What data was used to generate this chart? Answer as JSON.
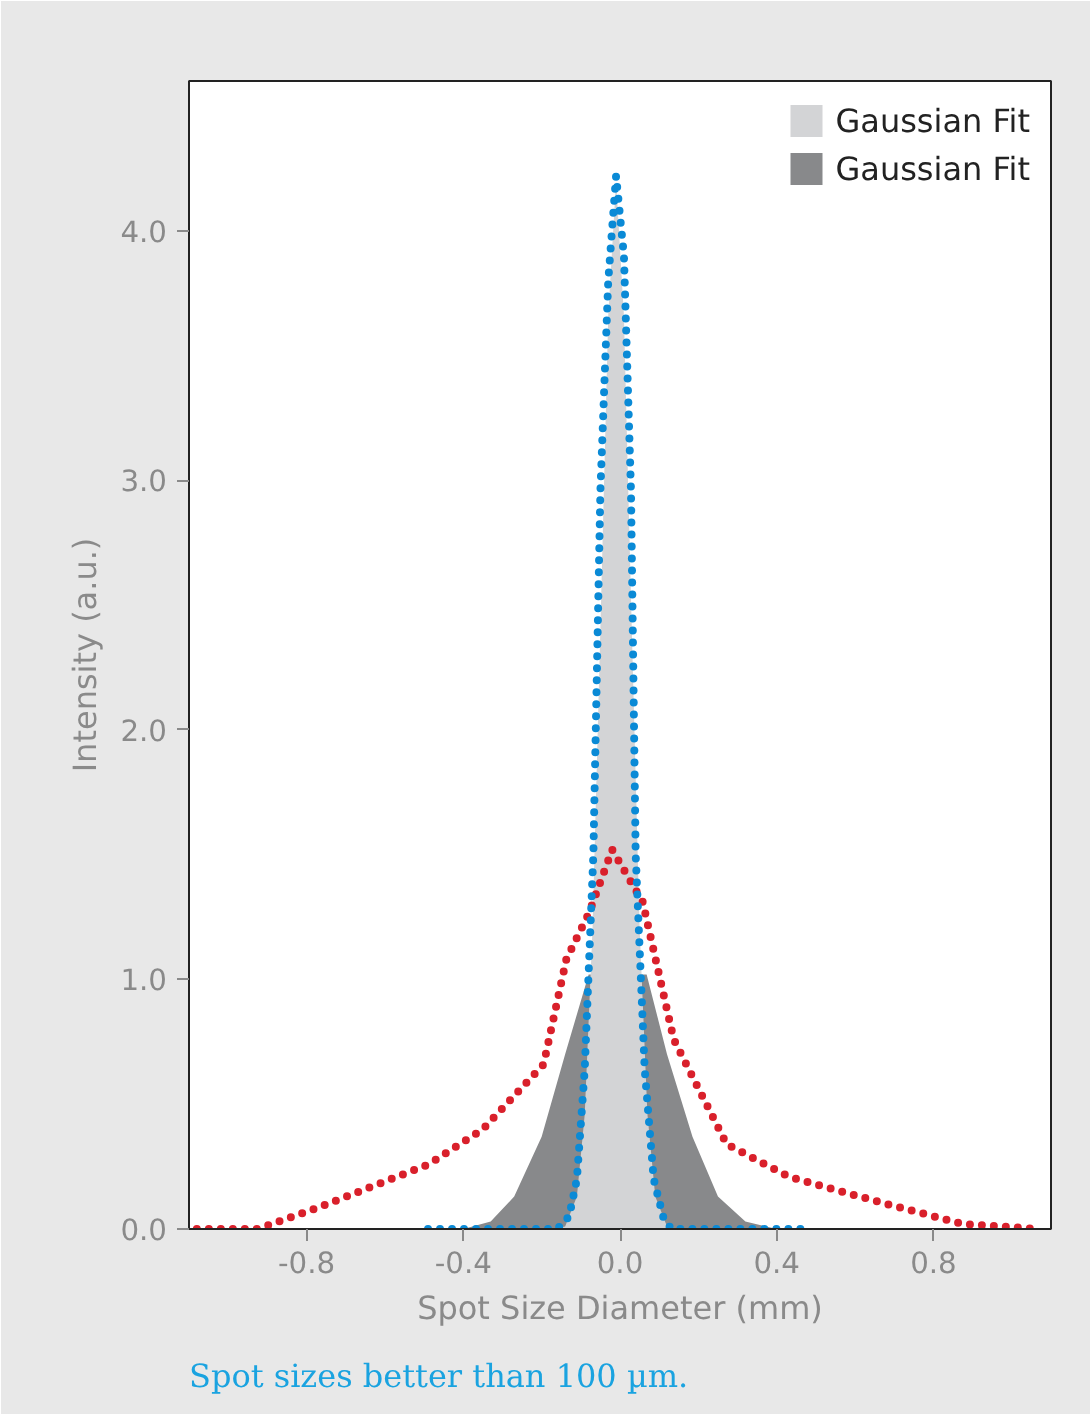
{
  "chart_data": {
    "type": "line",
    "xlabel": "Spot Size Diameter (mm)",
    "ylabel": "Intensity (a.u.)",
    "xlim": [
      -1.1,
      1.1
    ],
    "ylim": [
      0,
      4.6
    ],
    "xticks": [
      {
        "value": -0.8,
        "label": "-0.8"
      },
      {
        "value": -0.4,
        "label": "-0.4"
      },
      {
        "value": 0,
        "label": "0.0"
      },
      {
        "value": 0.4,
        "label": "0.4"
      },
      {
        "value": 0.8,
        "label": "0.8"
      }
    ],
    "yticks": [
      {
        "value": 0,
        "label": "0.0"
      },
      {
        "value": 1,
        "label": "1.0"
      },
      {
        "value": 2,
        "label": "2.0"
      },
      {
        "value": 3,
        "label": "3.0"
      },
      {
        "value": 4,
        "label": "4.0"
      }
    ],
    "grid": false,
    "legend": "top right",
    "line_style": "dotted",
    "series": [
      {
        "color": "#0a8ad6",
        "x": [
          -0.49,
          -0.3,
          -0.16,
          -0.13,
          -0.11,
          -0.09,
          -0.068,
          -0.05,
          -0.03,
          -0.01,
          0.01,
          0.028,
          0.04,
          0.063,
          0.086,
          0.11,
          0.13,
          0.3,
          0.47
        ],
        "values": [
          0,
          0,
          0,
          0.05,
          0.2,
          0.64,
          1.5,
          2.96,
          3.8,
          4.22,
          3.9,
          2.96,
          1.5,
          0.64,
          0.2,
          0.05,
          0,
          0,
          0
        ]
      },
      {
        "type": "area",
        "name": "Gaussian Fit",
        "color": "#d3d4d6",
        "x": [
          -0.17,
          -0.14,
          -0.11,
          -0.09,
          -0.07,
          -0.05,
          -0.03,
          -0.01,
          0.01,
          0.03,
          0.05,
          0.07,
          0.09,
          0.12,
          0.15
        ],
        "values": [
          0,
          0.01,
          0.13,
          0.46,
          1.21,
          2.41,
          3.66,
          4.2,
          3.66,
          2.41,
          1.21,
          0.46,
          0.13,
          0.01,
          0
        ]
      },
      {
        "color": "#d9202b",
        "x": [
          -1.08,
          -0.925,
          -0.78,
          -0.487,
          -0.35,
          -0.195,
          -0.137,
          -0.078,
          -0.02,
          0.058,
          0.137,
          0.272,
          0.43,
          0.68,
          0.876,
          1.07
        ],
        "values": [
          0,
          0.0,
          0.08,
          0.26,
          0.4,
          0.66,
          1.08,
          1.27,
          1.52,
          1.31,
          0.76,
          0.34,
          0.21,
          0.1,
          0.02,
          0
        ]
      },
      {
        "type": "area",
        "name": "Gaussian Fit",
        "color": "#88898b",
        "x": [
          -0.4,
          -0.33,
          -0.27,
          -0.2,
          -0.14,
          -0.08,
          -0.04,
          -0.01,
          0.02,
          0.068,
          0.12,
          0.185,
          0.25,
          0.32,
          0.4
        ],
        "values": [
          0,
          0.03,
          0.13,
          0.37,
          0.7,
          1.02,
          null,
          null,
          null,
          1.02,
          0.7,
          0.37,
          0.13,
          0.03,
          0
        ]
      }
    ],
    "annotations": [
      "Spot sizes better than 100 µm."
    ]
  }
}
